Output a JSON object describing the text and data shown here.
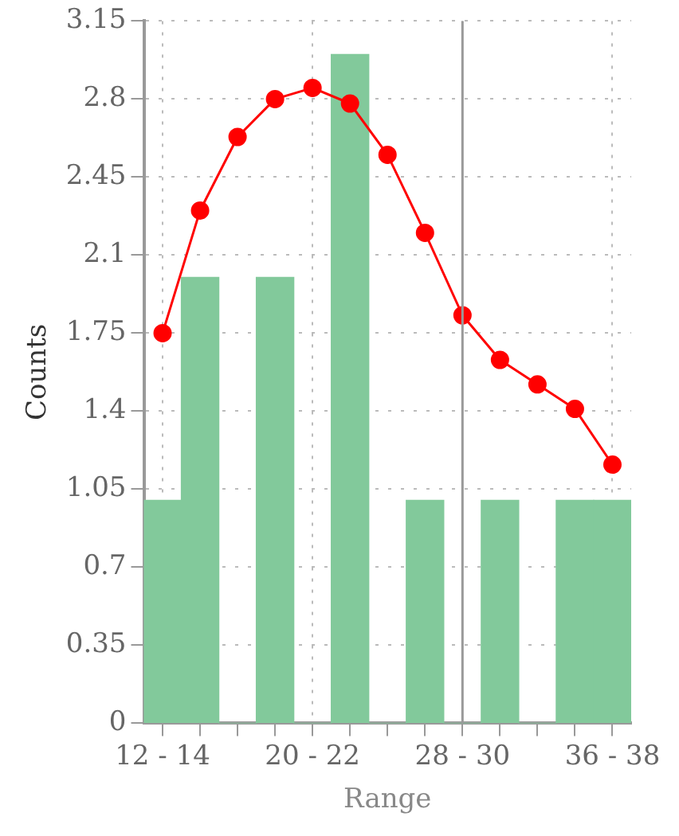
{
  "chart_data": {
    "type": "bar",
    "xlabel": "Range",
    "ylabel": "Counts",
    "categories": [
      "12 - 14",
      null,
      null,
      null,
      "20 - 22",
      null,
      null,
      null,
      "28 - 30",
      null,
      null,
      null,
      "36 - 38"
    ],
    "series": [
      {
        "color": "#82c99b",
        "values": [
          1,
          2,
          0,
          2,
          0,
          3,
          0,
          1,
          0,
          1,
          0,
          1,
          1
        ]
      },
      {
        "type": "line",
        "color": "#ff0000",
        "values": [
          1.75,
          2.3,
          2.63,
          2.8,
          2.85,
          2.78,
          2.55,
          2.2,
          1.83,
          1.63,
          1.52,
          1.41,
          1.16
        ],
        "marker": "circle"
      }
    ],
    "ylim": [
      0,
      3.15
    ],
    "yticks": [
      0,
      0.35,
      0.7,
      1.05,
      1.4,
      1.75,
      2.1,
      2.45,
      2.8,
      3.15
    ],
    "ref_lines": [
      {
        "axis": "x",
        "value": "28 - 30",
        "color": "#999999"
      }
    ],
    "grid": true,
    "legend": false
  }
}
